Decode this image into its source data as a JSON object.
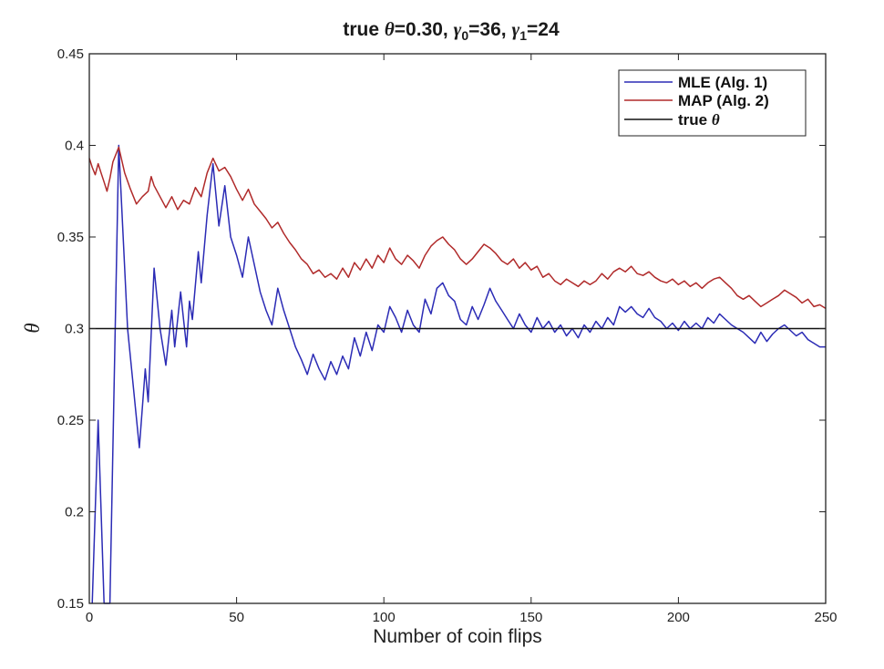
{
  "chart_data": {
    "type": "line",
    "title": "true θ=0.30, γ₀=36, γ₁=24",
    "title_parts": {
      "p1": "true ",
      "theta": "θ",
      "p2": "=0.30, ",
      "g0": "γ",
      "s0": "0",
      "p3": "=36, ",
      "g1": "γ",
      "s1": "1",
      "p4": "=24"
    },
    "xlabel": "Number of coin flips",
    "ylabel": "θ",
    "xlim": [
      0,
      250
    ],
    "ylim": [
      0.15,
      0.45
    ],
    "x_ticks": [
      "0",
      "50",
      "100",
      "150",
      "200",
      "250"
    ],
    "y_ticks": [
      "0.15",
      "0.2",
      "0.25",
      "0.3",
      "0.35",
      "0.4",
      "0.45"
    ],
    "grid": false,
    "legend_position": "top-right",
    "series": [
      {
        "name": "MLE (Alg. 1)",
        "color": "#2b2bb5",
        "points": [
          [
            1,
            0.15
          ],
          [
            3,
            0.25
          ],
          [
            5,
            0.15
          ],
          [
            7,
            0.143
          ],
          [
            10,
            0.4
          ],
          [
            13,
            0.3
          ],
          [
            17,
            0.235
          ],
          [
            19,
            0.278
          ],
          [
            20,
            0.26
          ],
          [
            22,
            0.333
          ],
          [
            24,
            0.3
          ],
          [
            26,
            0.28
          ],
          [
            28,
            0.31
          ],
          [
            29,
            0.29
          ],
          [
            31,
            0.32
          ],
          [
            32,
            0.305
          ],
          [
            33,
            0.29
          ],
          [
            34,
            0.315
          ],
          [
            35,
            0.305
          ],
          [
            37,
            0.342
          ],
          [
            38,
            0.325
          ],
          [
            40,
            0.362
          ],
          [
            42,
            0.39
          ],
          [
            44,
            0.356
          ],
          [
            46,
            0.378
          ],
          [
            48,
            0.35
          ],
          [
            50,
            0.34
          ],
          [
            52,
            0.328
          ],
          [
            54,
            0.35
          ],
          [
            56,
            0.335
          ],
          [
            58,
            0.32
          ],
          [
            60,
            0.31
          ],
          [
            62,
            0.302
          ],
          [
            64,
            0.322
          ],
          [
            66,
            0.31
          ],
          [
            68,
            0.3
          ],
          [
            70,
            0.29
          ],
          [
            72,
            0.283
          ],
          [
            74,
            0.275
          ],
          [
            76,
            0.286
          ],
          [
            78,
            0.278
          ],
          [
            80,
            0.272
          ],
          [
            82,
            0.282
          ],
          [
            84,
            0.275
          ],
          [
            86,
            0.285
          ],
          [
            88,
            0.278
          ],
          [
            90,
            0.295
          ],
          [
            92,
            0.285
          ],
          [
            94,
            0.298
          ],
          [
            96,
            0.288
          ],
          [
            98,
            0.302
          ],
          [
            100,
            0.298
          ],
          [
            102,
            0.312
          ],
          [
            104,
            0.306
          ],
          [
            106,
            0.298
          ],
          [
            108,
            0.31
          ],
          [
            110,
            0.302
          ],
          [
            112,
            0.298
          ],
          [
            114,
            0.316
          ],
          [
            116,
            0.308
          ],
          [
            118,
            0.322
          ],
          [
            120,
            0.325
          ],
          [
            122,
            0.318
          ],
          [
            124,
            0.315
          ],
          [
            126,
            0.305
          ],
          [
            128,
            0.302
          ],
          [
            130,
            0.312
          ],
          [
            132,
            0.305
          ],
          [
            134,
            0.313
          ],
          [
            136,
            0.322
          ],
          [
            138,
            0.315
          ],
          [
            140,
            0.31
          ],
          [
            142,
            0.305
          ],
          [
            144,
            0.3
          ],
          [
            146,
            0.308
          ],
          [
            148,
            0.302
          ],
          [
            150,
            0.298
          ],
          [
            152,
            0.306
          ],
          [
            154,
            0.3
          ],
          [
            156,
            0.304
          ],
          [
            158,
            0.298
          ],
          [
            160,
            0.302
          ],
          [
            162,
            0.296
          ],
          [
            164,
            0.3
          ],
          [
            166,
            0.295
          ],
          [
            168,
            0.302
          ],
          [
            170,
            0.298
          ],
          [
            172,
            0.304
          ],
          [
            174,
            0.3
          ],
          [
            176,
            0.306
          ],
          [
            178,
            0.302
          ],
          [
            180,
            0.312
          ],
          [
            182,
            0.309
          ],
          [
            184,
            0.312
          ],
          [
            186,
            0.308
          ],
          [
            188,
            0.306
          ],
          [
            190,
            0.311
          ],
          [
            192,
            0.306
          ],
          [
            194,
            0.304
          ],
          [
            196,
            0.3
          ],
          [
            198,
            0.303
          ],
          [
            200,
            0.299
          ],
          [
            202,
            0.304
          ],
          [
            204,
            0.3
          ],
          [
            206,
            0.303
          ],
          [
            208,
            0.3
          ],
          [
            210,
            0.306
          ],
          [
            212,
            0.303
          ],
          [
            214,
            0.308
          ],
          [
            216,
            0.305
          ],
          [
            218,
            0.302
          ],
          [
            220,
            0.3
          ],
          [
            222,
            0.298
          ],
          [
            224,
            0.295
          ],
          [
            226,
            0.292
          ],
          [
            228,
            0.298
          ],
          [
            230,
            0.293
          ],
          [
            232,
            0.297
          ],
          [
            234,
            0.3
          ],
          [
            236,
            0.302
          ],
          [
            238,
            0.299
          ],
          [
            240,
            0.296
          ],
          [
            242,
            0.298
          ],
          [
            244,
            0.294
          ],
          [
            246,
            0.292
          ],
          [
            248,
            0.29
          ],
          [
            250,
            0.29
          ]
        ]
      },
      {
        "name": "MAP (Alg. 2)",
        "color": "#b02a2a",
        "points": [
          [
            0,
            0.393
          ],
          [
            1,
            0.388
          ],
          [
            2,
            0.384
          ],
          [
            3,
            0.39
          ],
          [
            4,
            0.385
          ],
          [
            5,
            0.38
          ],
          [
            6,
            0.375
          ],
          [
            7,
            0.382
          ],
          [
            8,
            0.391
          ],
          [
            10,
            0.399
          ],
          [
            12,
            0.385
          ],
          [
            14,
            0.376
          ],
          [
            16,
            0.368
          ],
          [
            18,
            0.372
          ],
          [
            20,
            0.375
          ],
          [
            21,
            0.383
          ],
          [
            22,
            0.378
          ],
          [
            24,
            0.372
          ],
          [
            26,
            0.366
          ],
          [
            28,
            0.372
          ],
          [
            30,
            0.365
          ],
          [
            32,
            0.37
          ],
          [
            34,
            0.368
          ],
          [
            36,
            0.377
          ],
          [
            38,
            0.372
          ],
          [
            40,
            0.385
          ],
          [
            42,
            0.393
          ],
          [
            44,
            0.386
          ],
          [
            46,
            0.388
          ],
          [
            48,
            0.383
          ],
          [
            50,
            0.376
          ],
          [
            52,
            0.37
          ],
          [
            54,
            0.376
          ],
          [
            56,
            0.368
          ],
          [
            58,
            0.364
          ],
          [
            60,
            0.36
          ],
          [
            62,
            0.355
          ],
          [
            64,
            0.358
          ],
          [
            66,
            0.352
          ],
          [
            68,
            0.347
          ],
          [
            70,
            0.343
          ],
          [
            72,
            0.338
          ],
          [
            74,
            0.335
          ],
          [
            76,
            0.33
          ],
          [
            78,
            0.332
          ],
          [
            80,
            0.328
          ],
          [
            82,
            0.33
          ],
          [
            84,
            0.327
          ],
          [
            86,
            0.333
          ],
          [
            88,
            0.328
          ],
          [
            90,
            0.336
          ],
          [
            92,
            0.332
          ],
          [
            94,
            0.338
          ],
          [
            96,
            0.333
          ],
          [
            98,
            0.34
          ],
          [
            100,
            0.336
          ],
          [
            102,
            0.344
          ],
          [
            104,
            0.338
          ],
          [
            106,
            0.335
          ],
          [
            108,
            0.34
          ],
          [
            110,
            0.337
          ],
          [
            112,
            0.333
          ],
          [
            114,
            0.34
          ],
          [
            116,
            0.345
          ],
          [
            118,
            0.348
          ],
          [
            120,
            0.35
          ],
          [
            122,
            0.346
          ],
          [
            124,
            0.343
          ],
          [
            126,
            0.338
          ],
          [
            128,
            0.335
          ],
          [
            130,
            0.338
          ],
          [
            132,
            0.342
          ],
          [
            134,
            0.346
          ],
          [
            136,
            0.344
          ],
          [
            138,
            0.341
          ],
          [
            140,
            0.337
          ],
          [
            142,
            0.335
          ],
          [
            144,
            0.338
          ],
          [
            146,
            0.333
          ],
          [
            148,
            0.336
          ],
          [
            150,
            0.332
          ],
          [
            152,
            0.334
          ],
          [
            154,
            0.328
          ],
          [
            156,
            0.33
          ],
          [
            158,
            0.326
          ],
          [
            160,
            0.324
          ],
          [
            162,
            0.327
          ],
          [
            164,
            0.325
          ],
          [
            166,
            0.323
          ],
          [
            168,
            0.326
          ],
          [
            170,
            0.324
          ],
          [
            172,
            0.326
          ],
          [
            174,
            0.33
          ],
          [
            176,
            0.327
          ],
          [
            178,
            0.331
          ],
          [
            180,
            0.333
          ],
          [
            182,
            0.331
          ],
          [
            184,
            0.334
          ],
          [
            186,
            0.33
          ],
          [
            188,
            0.329
          ],
          [
            190,
            0.331
          ],
          [
            192,
            0.328
          ],
          [
            194,
            0.326
          ],
          [
            196,
            0.325
          ],
          [
            198,
            0.327
          ],
          [
            200,
            0.324
          ],
          [
            202,
            0.326
          ],
          [
            204,
            0.323
          ],
          [
            206,
            0.325
          ],
          [
            208,
            0.322
          ],
          [
            210,
            0.325
          ],
          [
            212,
            0.327
          ],
          [
            214,
            0.328
          ],
          [
            216,
            0.325
          ],
          [
            218,
            0.322
          ],
          [
            220,
            0.318
          ],
          [
            222,
            0.316
          ],
          [
            224,
            0.318
          ],
          [
            226,
            0.315
          ],
          [
            228,
            0.312
          ],
          [
            230,
            0.314
          ],
          [
            232,
            0.316
          ],
          [
            234,
            0.318
          ],
          [
            236,
            0.321
          ],
          [
            238,
            0.319
          ],
          [
            240,
            0.317
          ],
          [
            242,
            0.314
          ],
          [
            244,
            0.316
          ],
          [
            246,
            0.312
          ],
          [
            248,
            0.313
          ],
          [
            250,
            0.311
          ]
        ]
      },
      {
        "name": "true θ",
        "name_prefix": "true ",
        "name_symbol": "θ",
        "color": "#111111",
        "points": [
          [
            0,
            0.3
          ],
          [
            250,
            0.3
          ]
        ]
      }
    ]
  }
}
